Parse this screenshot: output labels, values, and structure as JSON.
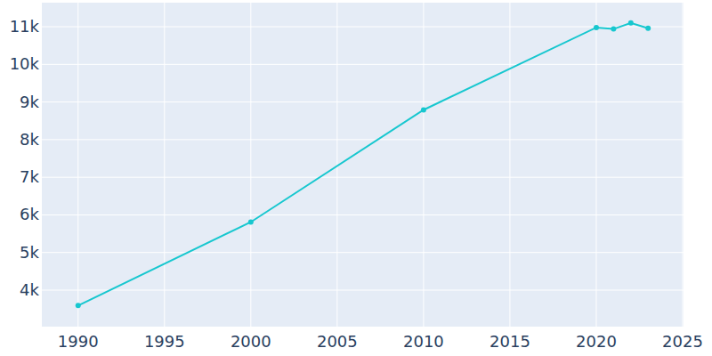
{
  "chart_data": {
    "type": "line",
    "x": [
      1990,
      2000,
      2010,
      2020,
      2021,
      2022,
      2023
    ],
    "values": [
      3590,
      5810,
      8790,
      10980,
      10940,
      11100,
      10960
    ],
    "color": "#17c7cf",
    "marker": "circle",
    "xlim": [
      1987.9,
      2025.05
    ],
    "xticks": [
      1990,
      1995,
      2000,
      2005,
      2010,
      2015,
      2020,
      2025
    ],
    "ylim": [
      3030,
      11640
    ],
    "yticks": [
      {
        "value": 4000,
        "label": "4k"
      },
      {
        "value": 5000,
        "label": "5k"
      },
      {
        "value": 6000,
        "label": "6k"
      },
      {
        "value": 7000,
        "label": "7k"
      },
      {
        "value": 8000,
        "label": "8k"
      },
      {
        "value": 9000,
        "label": "9k"
      },
      {
        "value": 10000,
        "label": "10k"
      },
      {
        "value": 11000,
        "label": "11k"
      }
    ],
    "grid": true
  }
}
